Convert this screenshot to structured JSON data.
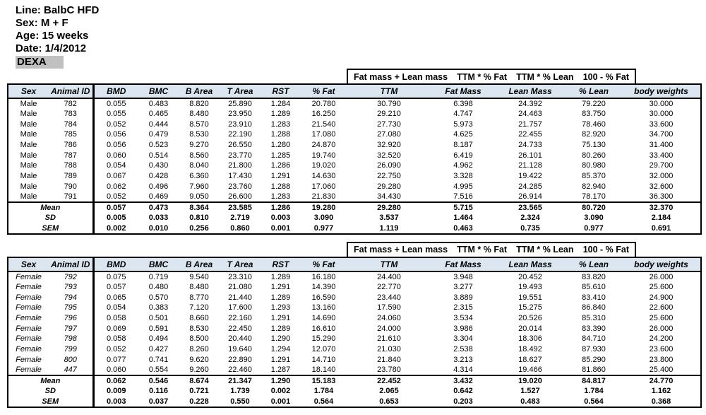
{
  "info": {
    "line": "Line: BalbC HFD",
    "sex": "Sex: M + F",
    "age": "Age: 15 weeks",
    "date": "Date: 1/4/2012",
    "section": "DEXA"
  },
  "colors": {
    "header_fill": "#dce6f1",
    "dexa_fill": "#c0c0c0",
    "border": "#000000"
  },
  "formula_labels": [
    "Fat mass + Lean mass",
    "TTM * % Fat",
    "TTM * % Lean",
    "100 - % Fat"
  ],
  "columns": [
    "Sex",
    "Animal ID",
    "BMD",
    "BMC",
    "B Area",
    "T Area",
    "RST",
    "% Fat",
    "TTM",
    "Fat Mass",
    "Lean Mass",
    "% Lean",
    "body weights"
  ],
  "tables": [
    {
      "group": "Male",
      "rows": [
        {
          "sex": "Male",
          "id": "782",
          "values": [
            "0.055",
            "0.483",
            "8.820",
            "25.890",
            "1.284",
            "20.780",
            "30.790",
            "6.398",
            "24.392",
            "79.220",
            "30.000"
          ]
        },
        {
          "sex": "Male",
          "id": "783",
          "values": [
            "0.055",
            "0.465",
            "8.480",
            "23.950",
            "1.289",
            "16.250",
            "29.210",
            "4.747",
            "24.463",
            "83.750",
            "30.000"
          ]
        },
        {
          "sex": "Male",
          "id": "784",
          "values": [
            "0.052",
            "0.444",
            "8.570",
            "23.910",
            "1.283",
            "21.540",
            "27.730",
            "5.973",
            "21.757",
            "78.460",
            "33.600"
          ]
        },
        {
          "sex": "Male",
          "id": "785",
          "values": [
            "0.056",
            "0.479",
            "8.530",
            "22.190",
            "1.288",
            "17.080",
            "27.080",
            "4.625",
            "22.455",
            "82.920",
            "34.700"
          ]
        },
        {
          "sex": "Male",
          "id": "786",
          "values": [
            "0.056",
            "0.523",
            "9.270",
            "26.550",
            "1.280",
            "24.870",
            "32.920",
            "8.187",
            "24.733",
            "75.130",
            "31.400"
          ]
        },
        {
          "sex": "Male",
          "id": "787",
          "values": [
            "0.060",
            "0.514",
            "8.560",
            "23.770",
            "1.285",
            "19.740",
            "32.520",
            "6.419",
            "26.101",
            "80.260",
            "33.400"
          ]
        },
        {
          "sex": "Male",
          "id": "788",
          "values": [
            "0.054",
            "0.430",
            "8.040",
            "21.800",
            "1.286",
            "19.020",
            "26.090",
            "4.962",
            "21.128",
            "80.980",
            "29.700"
          ]
        },
        {
          "sex": "Male",
          "id": "789",
          "values": [
            "0.067",
            "0.428",
            "6.360",
            "17.430",
            "1.291",
            "14.630",
            "22.750",
            "3.328",
            "19.422",
            "85.370",
            "32.000"
          ]
        },
        {
          "sex": "Male",
          "id": "790",
          "values": [
            "0.062",
            "0.496",
            "7.960",
            "23.760",
            "1.288",
            "17.060",
            "29.280",
            "4.995",
            "24.285",
            "82.940",
            "32.600"
          ]
        },
        {
          "sex": "Male",
          "id": "791",
          "values": [
            "0.052",
            "0.469",
            "9.050",
            "26.600",
            "1.283",
            "21.830",
            "34.430",
            "7.516",
            "26.914",
            "78.170",
            "36.300"
          ]
        }
      ],
      "summary": [
        {
          "label": "Mean",
          "values": [
            "0.057",
            "0.473",
            "8.364",
            "23.585",
            "1.286",
            "19.280",
            "29.280",
            "5.715",
            "23.565",
            "80.720",
            "32.370"
          ]
        },
        {
          "label": "SD",
          "values": [
            "0.005",
            "0.033",
            "0.810",
            "2.719",
            "0.003",
            "3.090",
            "3.537",
            "1.464",
            "2.324",
            "3.090",
            "2.184"
          ]
        },
        {
          "label": "SEM",
          "values": [
            "0.002",
            "0.010",
            "0.256",
            "0.860",
            "0.001",
            "0.977",
            "1.119",
            "0.463",
            "0.735",
            "0.977",
            "0.691"
          ]
        }
      ]
    },
    {
      "group": "Female",
      "rows": [
        {
          "sex": "Female",
          "id": "792",
          "values": [
            "0.075",
            "0.719",
            "9.540",
            "23.310",
            "1.289",
            "16.180",
            "24.400",
            "3.948",
            "20.452",
            "83.820",
            "26.000"
          ]
        },
        {
          "sex": "Female",
          "id": "793",
          "values": [
            "0.057",
            "0.480",
            "8.480",
            "21.080",
            "1.291",
            "14.390",
            "22.770",
            "3.277",
            "19.493",
            "85.610",
            "25.600"
          ]
        },
        {
          "sex": "Female",
          "id": "794",
          "values": [
            "0.065",
            "0.570",
            "8.770",
            "21.440",
            "1.289",
            "16.590",
            "23.440",
            "3.889",
            "19.551",
            "83.410",
            "24.900"
          ]
        },
        {
          "sex": "Female",
          "id": "795",
          "values": [
            "0.054",
            "0.383",
            "7.120",
            "17.600",
            "1.293",
            "13.160",
            "17.590",
            "2.315",
            "15.275",
            "86.840",
            "22.600"
          ]
        },
        {
          "sex": "Female",
          "id": "796",
          "values": [
            "0.058",
            "0.501",
            "8.660",
            "22.160",
            "1.291",
            "14.690",
            "24.060",
            "3.534",
            "20.526",
            "85.310",
            "25.600"
          ]
        },
        {
          "sex": "Female",
          "id": "797",
          "values": [
            "0.069",
            "0.591",
            "8.530",
            "22.450",
            "1.289",
            "16.610",
            "24.000",
            "3.986",
            "20.014",
            "83.390",
            "26.000"
          ]
        },
        {
          "sex": "Female",
          "id": "798",
          "values": [
            "0.058",
            "0.494",
            "8.500",
            "20.440",
            "1.290",
            "15.290",
            "21.610",
            "3.304",
            "18.306",
            "84.710",
            "24.200"
          ]
        },
        {
          "sex": "Female",
          "id": "799",
          "values": [
            "0.052",
            "0.427",
            "8.260",
            "19.640",
            "1.294",
            "12.070",
            "21.030",
            "2.538",
            "18.492",
            "87.930",
            "23.600"
          ]
        },
        {
          "sex": "Female",
          "id": "800",
          "values": [
            "0.077",
            "0.741",
            "9.620",
            "22.890",
            "1.291",
            "14.710",
            "21.840",
            "3.213",
            "18.627",
            "85.290",
            "23.800"
          ]
        },
        {
          "sex": "Female",
          "id": "447",
          "values": [
            "0.060",
            "0.554",
            "9.260",
            "22.460",
            "1.287",
            "18.140",
            "23.780",
            "4.314",
            "19.466",
            "81.860",
            "25.400"
          ]
        }
      ],
      "summary": [
        {
          "label": "Mean",
          "values": [
            "0.062",
            "0.546",
            "8.674",
            "21.347",
            "1.290",
            "15.183",
            "22.452",
            "3.432",
            "19.020",
            "84.817",
            "24.770"
          ]
        },
        {
          "label": "SD",
          "values": [
            "0.009",
            "0.116",
            "0.721",
            "1.739",
            "0.002",
            "1.784",
            "2.065",
            "0.642",
            "1.527",
            "1.784",
            "1.162"
          ]
        },
        {
          "label": "SEM",
          "values": [
            "0.003",
            "0.037",
            "0.228",
            "0.550",
            "0.001",
            "0.564",
            "0.653",
            "0.203",
            "0.483",
            "0.564",
            "0.368"
          ]
        }
      ]
    }
  ]
}
